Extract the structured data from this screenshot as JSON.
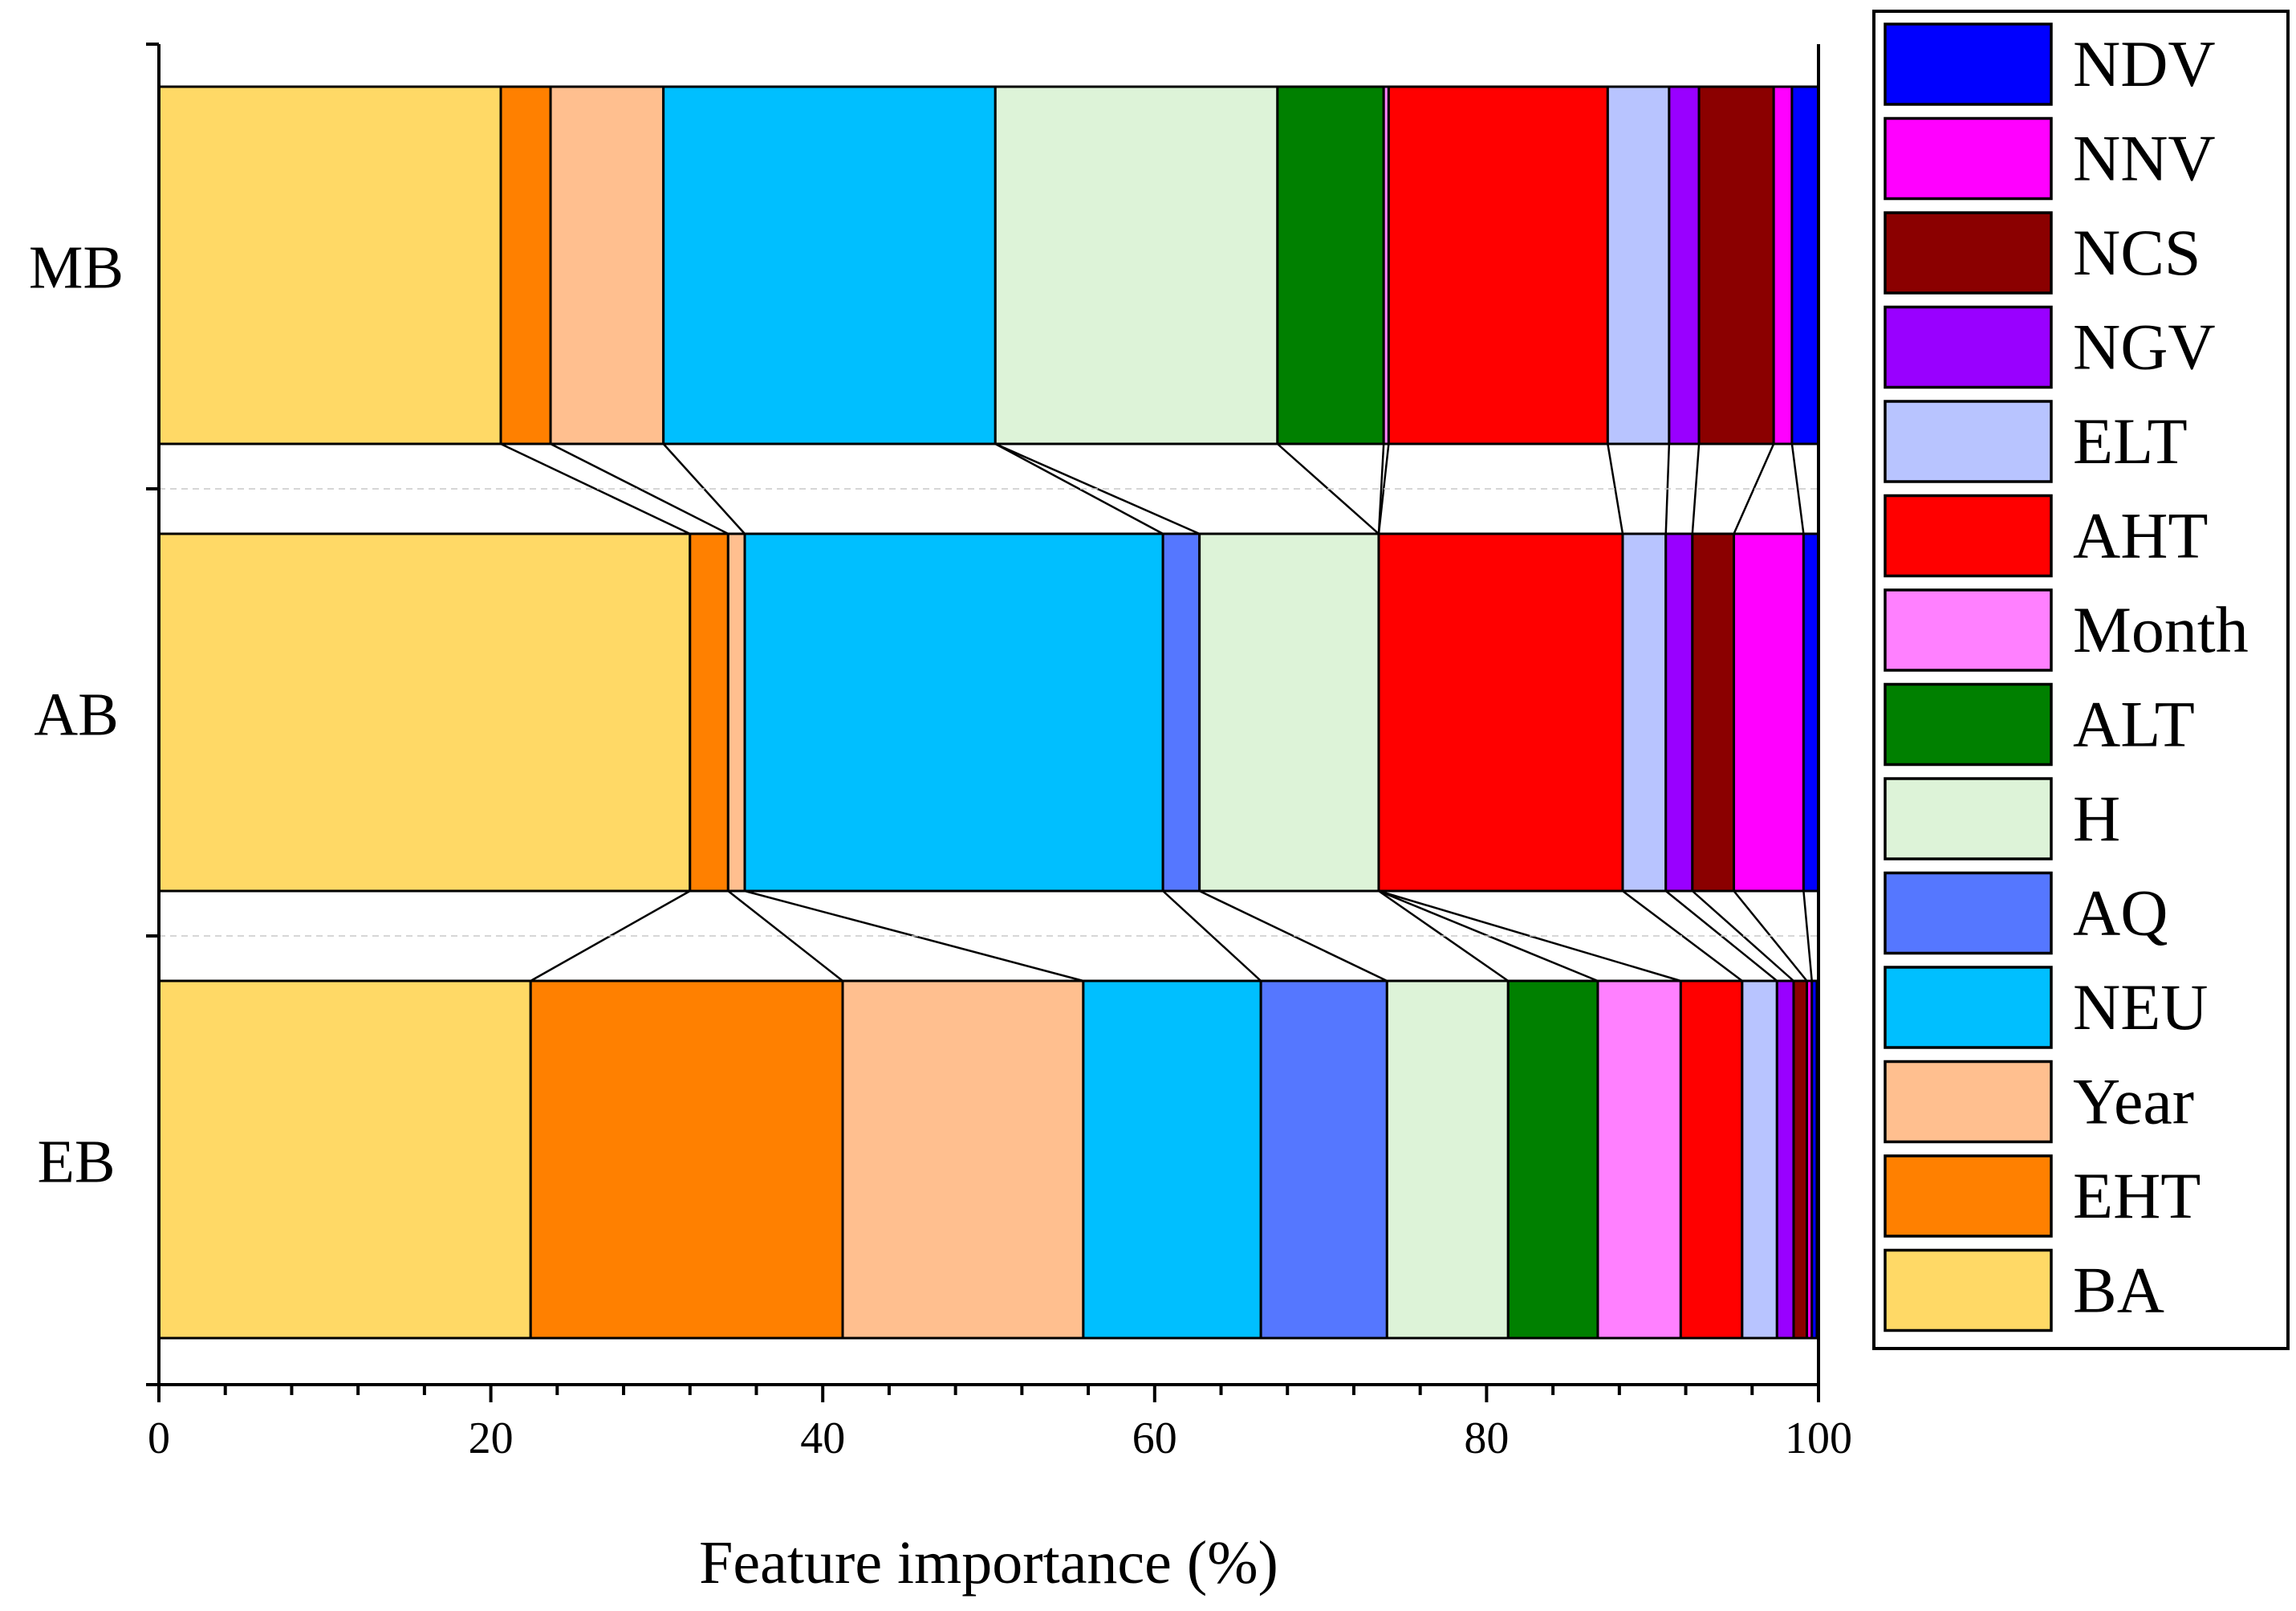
{
  "chart_data": {
    "type": "bar",
    "orientation": "horizontal",
    "stacked": true,
    "xlabel": "Feature importance (%)",
    "ylabel": "",
    "xlim": [
      0,
      100
    ],
    "x_ticks": [
      0,
      20,
      40,
      60,
      80,
      100
    ],
    "x_tick_labels": [
      "0",
      "20",
      "40",
      "60",
      "80",
      "100"
    ],
    "categories": [
      "MB",
      "AB",
      "EB"
    ],
    "stack_order": [
      "BA",
      "EHT",
      "Year",
      "NEU",
      "AQ",
      "H",
      "ALT",
      "Month",
      "AHT",
      "ELT",
      "NGV",
      "NCS",
      "NNV",
      "NDV"
    ],
    "series": [
      {
        "name": "BA",
        "color": "#FFD966",
        "values": [
          20.6,
          32.0,
          22.4
        ]
      },
      {
        "name": "EHT",
        "color": "#FF8000",
        "values": [
          3.0,
          2.3,
          18.8
        ]
      },
      {
        "name": "Year",
        "color": "#FFBF8F",
        "values": [
          6.8,
          1.0,
          14.5
        ]
      },
      {
        "name": "NEU",
        "color": "#00BFFF",
        "values": [
          20.0,
          25.2,
          10.7
        ]
      },
      {
        "name": "AQ",
        "color": "#5577FF",
        "values": [
          0.0,
          2.2,
          7.6
        ]
      },
      {
        "name": "H",
        "color": "#DDF3D8",
        "values": [
          17.0,
          10.8,
          7.3
        ]
      },
      {
        "name": "ALT",
        "color": "#008000",
        "values": [
          6.4,
          0.0,
          5.4
        ]
      },
      {
        "name": "Month",
        "color": "#FF80FF",
        "values": [
          0.3,
          0.0,
          5.0
        ]
      },
      {
        "name": "AHT",
        "color": "#FF0000",
        "values": [
          13.2,
          14.7,
          3.7
        ]
      },
      {
        "name": "ELT",
        "color": "#B8C4FF",
        "values": [
          3.7,
          2.6,
          2.1
        ]
      },
      {
        "name": "NGV",
        "color": "#9900FF",
        "values": [
          1.8,
          1.6,
          1.0
        ]
      },
      {
        "name": "NCS",
        "color": "#8B0000",
        "values": [
          4.5,
          2.5,
          0.8
        ]
      },
      {
        "name": "NNV",
        "color": "#FF00FF",
        "values": [
          1.1,
          4.2,
          0.3
        ]
      },
      {
        "name": "NDV",
        "color": "#0000FF",
        "values": [
          1.6,
          0.9,
          0.3
        ]
      }
    ],
    "legend_position": "right",
    "legend_order": [
      "NDV",
      "NNV",
      "NCS",
      "NGV",
      "ELT",
      "AHT",
      "Month",
      "ALT",
      "H",
      "AQ",
      "NEU",
      "Year",
      "EHT",
      "BA"
    ],
    "connector_lines": true,
    "grid": false
  }
}
